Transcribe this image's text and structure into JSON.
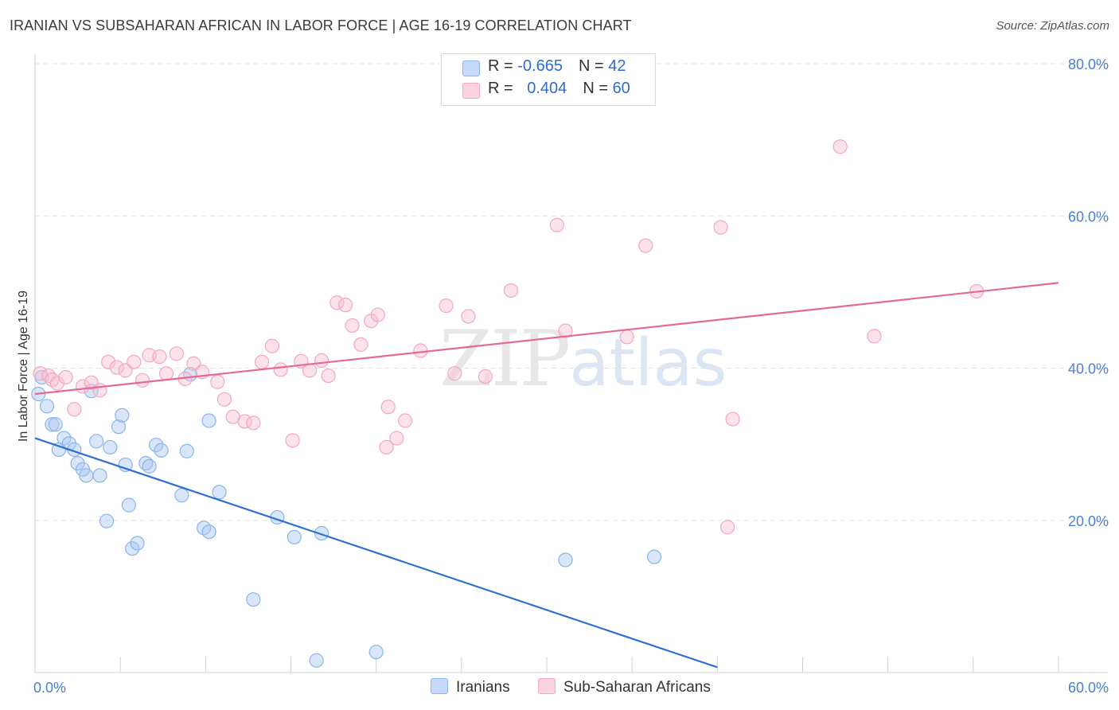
{
  "title": "IRANIAN VS SUBSAHARAN AFRICAN IN LABOR FORCE | AGE 16-19 CORRELATION CHART",
  "source": "Source: ZipAtlas.com",
  "watermark": {
    "zip": "ZIP",
    "atlas": "atlas"
  },
  "legend": {
    "rows": [
      {
        "r_label": "R = ",
        "r_value": "-0.665",
        "n_label": "N = ",
        "n_value": "42",
        "color": "#8ab4ea"
      },
      {
        "r_label": "R = ",
        "r_value": "0.404",
        "n_label": "N = ",
        "n_value": "60",
        "color": "#f4a7bd"
      }
    ]
  },
  "bottom_legend": {
    "series1": "Iranians",
    "series2": "Sub-Saharan Africans"
  },
  "chart_data": {
    "type": "scatter",
    "title": "IRANIAN VS SUBSAHARAN AFRICAN IN LABOR FORCE | AGE 16-19 CORRELATION CHART",
    "xlabel": "",
    "ylabel": "In Labor Force | Age 16-19",
    "xlim": [
      0,
      60
    ],
    "ylim": [
      0,
      80
    ],
    "x_tick_labels": [
      "0.0%",
      "60.0%"
    ],
    "y_tick_values": [
      20,
      40,
      60,
      80
    ],
    "y_tick_labels": [
      "20.0%",
      "40.0%",
      "60.0%",
      "80.0%"
    ],
    "grid": "horizontal dashed",
    "legend_position": "top-center",
    "series": [
      {
        "name": "Iranians",
        "color": "#8ab4ea",
        "line_color": "#2e6fd1",
        "trend": {
          "x": [
            0,
            40
          ],
          "y": [
            30.8,
            0.7
          ]
        },
        "points": [
          [
            0.2,
            36.6
          ],
          [
            0.4,
            38.8
          ],
          [
            0.7,
            35.0
          ],
          [
            1.0,
            32.6
          ],
          [
            1.2,
            32.6
          ],
          [
            1.4,
            29.3
          ],
          [
            1.7,
            30.8
          ],
          [
            2.0,
            30.1
          ],
          [
            2.3,
            29.3
          ],
          [
            2.5,
            27.5
          ],
          [
            2.8,
            26.7
          ],
          [
            3.0,
            25.9
          ],
          [
            3.3,
            37.0
          ],
          [
            3.6,
            30.4
          ],
          [
            3.8,
            25.9
          ],
          [
            4.2,
            19.9
          ],
          [
            4.4,
            29.6
          ],
          [
            4.9,
            32.3
          ],
          [
            5.1,
            33.8
          ],
          [
            5.3,
            27.3
          ],
          [
            5.5,
            22.0
          ],
          [
            5.7,
            16.3
          ],
          [
            6.0,
            17.0
          ],
          [
            6.5,
            27.5
          ],
          [
            6.7,
            27.1
          ],
          [
            7.1,
            29.9
          ],
          [
            7.4,
            29.2
          ],
          [
            8.6,
            23.3
          ],
          [
            8.9,
            29.1
          ],
          [
            9.1,
            39.2
          ],
          [
            9.9,
            19.0
          ],
          [
            10.2,
            18.5
          ],
          [
            10.2,
            33.1
          ],
          [
            10.8,
            23.7
          ],
          [
            12.8,
            9.6
          ],
          [
            14.2,
            20.4
          ],
          [
            15.2,
            17.8
          ],
          [
            16.8,
            18.3
          ],
          [
            16.5,
            1.6
          ],
          [
            20.0,
            2.7
          ],
          [
            31.1,
            14.8
          ],
          [
            36.3,
            15.2
          ]
        ]
      },
      {
        "name": "Sub-Saharan Africans",
        "color": "#f4a7bd",
        "line_color": "#e46a93",
        "trend": {
          "x": [
            0,
            60
          ],
          "y": [
            36.6,
            51.2
          ]
        },
        "points": [
          [
            0.3,
            39.3
          ],
          [
            0.8,
            39.0
          ],
          [
            1.0,
            38.5
          ],
          [
            1.3,
            38.0
          ],
          [
            1.8,
            38.8
          ],
          [
            2.3,
            34.6
          ],
          [
            2.8,
            37.6
          ],
          [
            3.3,
            38.1
          ],
          [
            3.8,
            37.1
          ],
          [
            4.3,
            40.8
          ],
          [
            4.8,
            40.1
          ],
          [
            5.3,
            39.7
          ],
          [
            5.8,
            40.8
          ],
          [
            6.3,
            38.4
          ],
          [
            6.7,
            41.7
          ],
          [
            7.3,
            41.5
          ],
          [
            7.7,
            39.3
          ],
          [
            8.3,
            41.9
          ],
          [
            8.8,
            38.6
          ],
          [
            9.3,
            40.6
          ],
          [
            9.8,
            39.5
          ],
          [
            10.7,
            38.2
          ],
          [
            11.1,
            35.9
          ],
          [
            11.6,
            33.6
          ],
          [
            12.3,
            33.0
          ],
          [
            12.8,
            32.8
          ],
          [
            13.3,
            40.8
          ],
          [
            13.9,
            42.9
          ],
          [
            14.4,
            39.8
          ],
          [
            15.1,
            30.5
          ],
          [
            15.6,
            40.9
          ],
          [
            16.1,
            39.7
          ],
          [
            16.8,
            41.0
          ],
          [
            17.2,
            39.0
          ],
          [
            17.7,
            48.6
          ],
          [
            18.2,
            48.3
          ],
          [
            18.6,
            45.6
          ],
          [
            19.1,
            43.1
          ],
          [
            19.7,
            46.2
          ],
          [
            20.1,
            47.0
          ],
          [
            20.7,
            34.9
          ],
          [
            21.2,
            30.8
          ],
          [
            21.7,
            33.1
          ],
          [
            20.6,
            29.6
          ],
          [
            22.6,
            42.3
          ],
          [
            24.1,
            48.2
          ],
          [
            24.6,
            39.3
          ],
          [
            25.4,
            46.8
          ],
          [
            26.4,
            38.9
          ],
          [
            27.9,
            50.2
          ],
          [
            30.6,
            58.8
          ],
          [
            31.1,
            44.9
          ],
          [
            34.7,
            44.1
          ],
          [
            35.8,
            56.1
          ],
          [
            40.2,
            58.5
          ],
          [
            40.6,
            19.1
          ],
          [
            40.9,
            33.3
          ],
          [
            47.2,
            69.1
          ],
          [
            49.2,
            44.2
          ],
          [
            55.2,
            50.1
          ]
        ]
      }
    ]
  }
}
